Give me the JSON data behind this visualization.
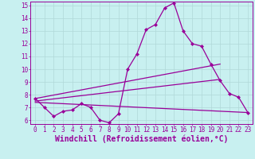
{
  "xlabel": "Windchill (Refroidissement éolien,°C)",
  "background_color": "#c8f0f0",
  "line_color": "#990099",
  "grid_color": "#b0d8d8",
  "xlim": [
    -0.5,
    23.5
  ],
  "ylim": [
    5.7,
    15.3
  ],
  "xticks": [
    0,
    1,
    2,
    3,
    4,
    5,
    6,
    7,
    8,
    9,
    10,
    11,
    12,
    13,
    14,
    15,
    16,
    17,
    18,
    19,
    20,
    21,
    22,
    23
  ],
  "yticks": [
    6,
    7,
    8,
    9,
    10,
    11,
    12,
    13,
    14,
    15
  ],
  "line1_x": [
    0,
    1,
    2,
    3,
    4,
    5,
    6,
    7,
    8,
    9,
    10,
    11,
    12,
    13,
    14,
    15,
    16,
    17,
    18,
    19,
    20,
    21,
    22,
    23
  ],
  "line1_y": [
    7.7,
    7.0,
    6.3,
    6.7,
    6.8,
    7.3,
    7.0,
    6.0,
    5.8,
    6.5,
    10.0,
    11.2,
    13.1,
    13.5,
    14.8,
    15.2,
    13.0,
    12.0,
    11.8,
    10.4,
    9.1,
    8.1,
    7.8,
    6.6
  ],
  "line2_x": [
    0,
    23
  ],
  "line2_y": [
    7.4,
    6.6
  ],
  "line3_x": [
    0,
    20
  ],
  "line3_y": [
    7.5,
    9.2
  ],
  "line4_x": [
    0,
    20
  ],
  "line4_y": [
    7.7,
    10.4
  ],
  "font_family": "monospace",
  "tick_fontsize": 5.5,
  "xlabel_fontsize": 7.0
}
